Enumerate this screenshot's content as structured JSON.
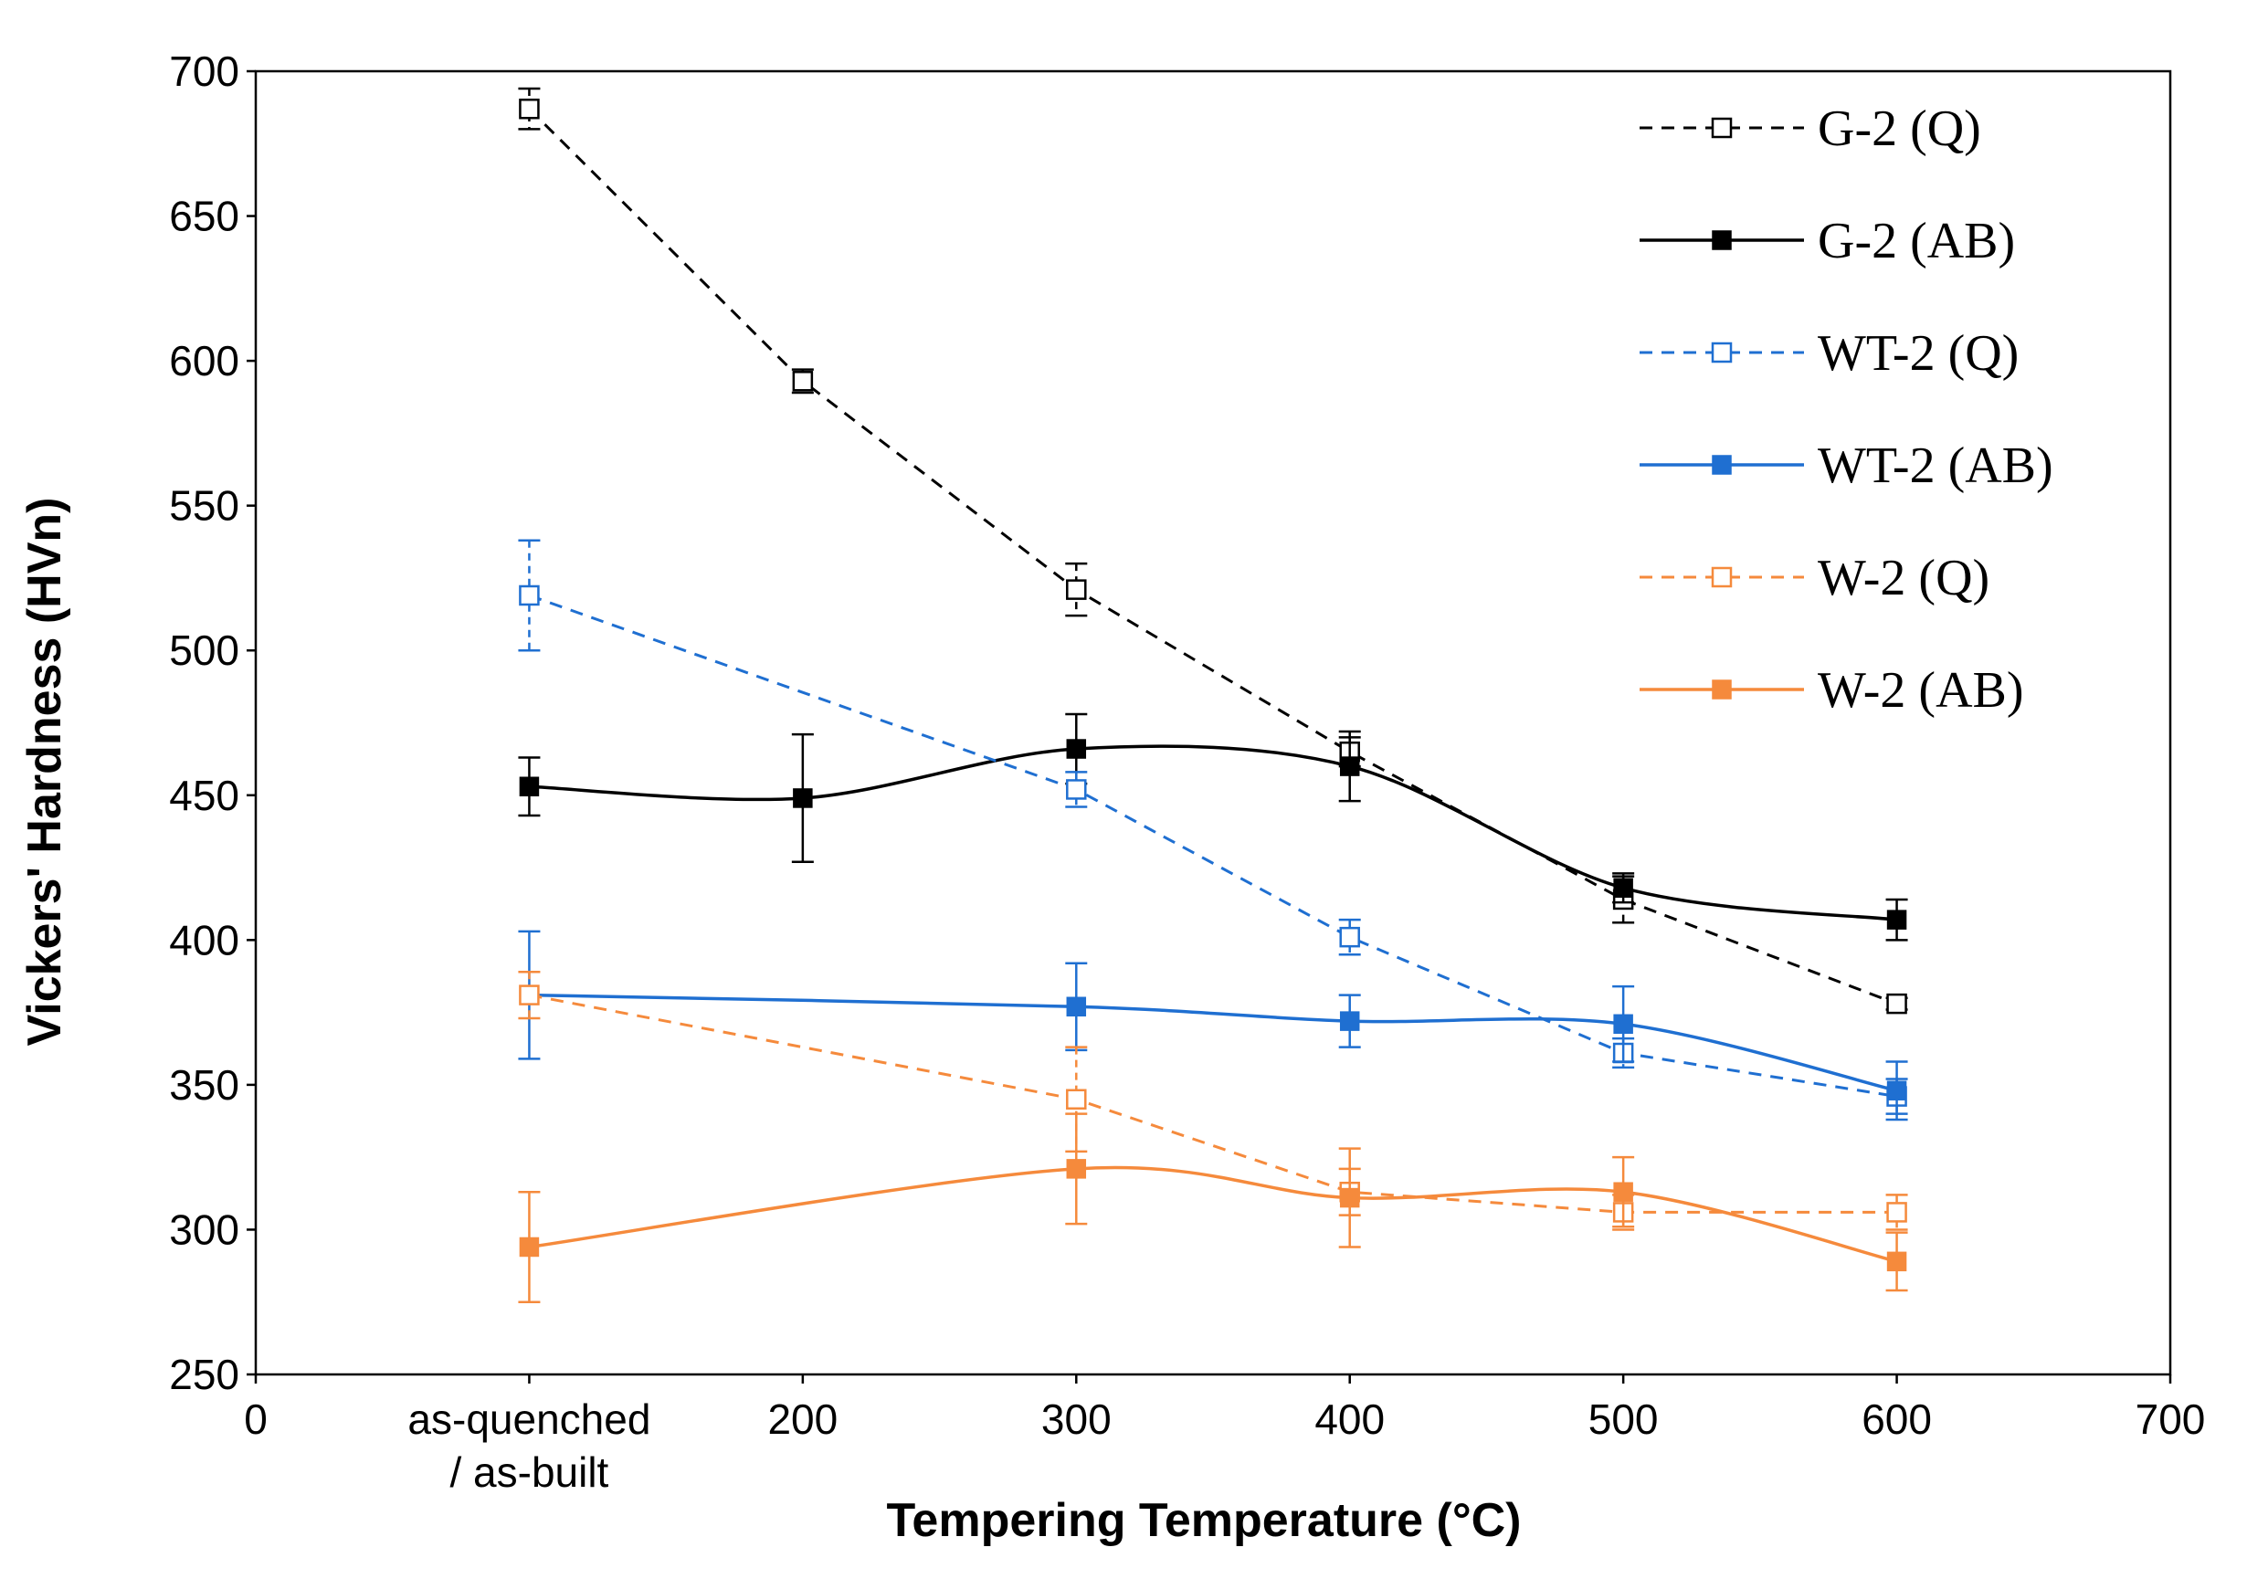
{
  "chart_data": {
    "type": "line",
    "title": "",
    "xlabel": "Tempering Temperature (°C)",
    "ylabel": "Vickers' Hardness (HVn)",
    "xlim": [
      0,
      700
    ],
    "ylim": [
      250,
      700
    ],
    "xticks": [
      0,
      100,
      200,
      300,
      400,
      500,
      600,
      700
    ],
    "xtick_labels": [
      "0",
      "as-quenched\n/ as-built",
      "200",
      "300",
      "400",
      "500",
      "600",
      "700"
    ],
    "yticks": [
      250,
      300,
      350,
      400,
      450,
      500,
      550,
      600,
      650,
      700
    ],
    "grid": false,
    "legend_position": "top-right",
    "series": [
      {
        "name": "G-2 (Q)",
        "color": "#000000",
        "line": "dashed",
        "marker": "open-square",
        "points": [
          {
            "x": 100,
            "y": 687,
            "err": 7
          },
          {
            "x": 200,
            "y": 593,
            "err": 4
          },
          {
            "x": 300,
            "y": 521,
            "err": 9
          },
          {
            "x": 400,
            "y": 465,
            "err": 5
          },
          {
            "x": 500,
            "y": 414,
            "err": 8
          },
          {
            "x": 600,
            "y": 378,
            "err": 2
          }
        ]
      },
      {
        "name": "G-2 (AB)",
        "color": "#000000",
        "line": "solid",
        "marker": "filled-square",
        "points": [
          {
            "x": 100,
            "y": 453,
            "err": 10
          },
          {
            "x": 200,
            "y": 449,
            "err": 22
          },
          {
            "x": 300,
            "y": 466,
            "err": 12
          },
          {
            "x": 400,
            "y": 460,
            "err": 12
          },
          {
            "x": 500,
            "y": 418,
            "err": 5
          },
          {
            "x": 600,
            "y": 407,
            "err": 7
          }
        ]
      },
      {
        "name": "WT-2 (Q)",
        "color": "#1f6fd1",
        "line": "dashed",
        "marker": "open-square",
        "points": [
          {
            "x": 100,
            "y": 519,
            "err": 19
          },
          {
            "x": 300,
            "y": 452,
            "err": 6
          },
          {
            "x": 400,
            "y": 401,
            "err": 6
          },
          {
            "x": 500,
            "y": 361,
            "err": 5
          },
          {
            "x": 600,
            "y": 346,
            "err": 6
          }
        ]
      },
      {
        "name": "WT-2 (AB)",
        "color": "#1f6fd1",
        "line": "solid",
        "marker": "filled-square",
        "points": [
          {
            "x": 100,
            "y": 381,
            "err": 22
          },
          {
            "x": 300,
            "y": 377,
            "err": 15
          },
          {
            "x": 400,
            "y": 372,
            "err": 9
          },
          {
            "x": 500,
            "y": 371,
            "err": 13
          },
          {
            "x": 600,
            "y": 348,
            "err": 10
          }
        ]
      },
      {
        "name": "W-2 (Q)",
        "color": "#f58a3c",
        "line": "dashed",
        "marker": "open-square",
        "points": [
          {
            "x": 100,
            "y": 381,
            "err": 8
          },
          {
            "x": 300,
            "y": 345,
            "err": 18
          },
          {
            "x": 400,
            "y": 313,
            "err": 8
          },
          {
            "x": 500,
            "y": 306,
            "err": 6
          },
          {
            "x": 600,
            "y": 306,
            "err": 6
          }
        ]
      },
      {
        "name": "W-2 (AB)",
        "color": "#f58a3c",
        "line": "solid",
        "marker": "filled-square",
        "points": [
          {
            "x": 100,
            "y": 294,
            "err": 19
          },
          {
            "x": 300,
            "y": 321,
            "err": 19
          },
          {
            "x": 400,
            "y": 311,
            "err": 17
          },
          {
            "x": 500,
            "y": 313,
            "err": 12
          },
          {
            "x": 600,
            "y": 289,
            "err": 10
          }
        ]
      }
    ]
  }
}
